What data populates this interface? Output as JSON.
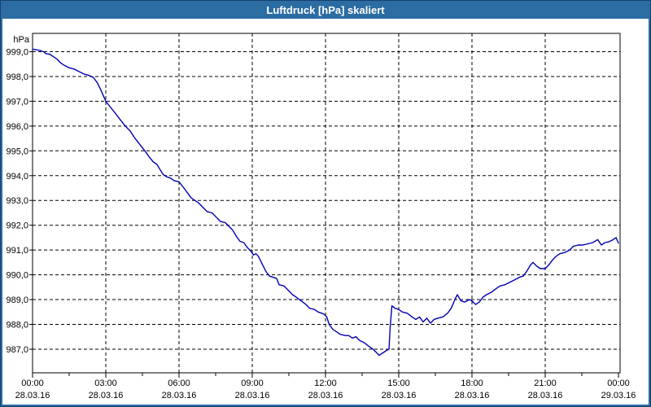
{
  "window": {
    "title": "Luftdruck [hPa] skaliert"
  },
  "colors": {
    "titlebar": "#2b6ca3",
    "title_text": "#ffffff",
    "frame": "#2b6ca3",
    "background": "#ffffff",
    "grid": "#000000",
    "series_line": "#0000b4"
  },
  "chart_data": {
    "type": "line",
    "title": "Luftdruck [hPa] skaliert",
    "ylabel": "hPa",
    "xlabel": "",
    "grid": "dashed",
    "legend": "none",
    "x_axis": {
      "range_hours": [
        0,
        24
      ],
      "grid_hours": [
        3,
        6,
        9,
        12,
        15,
        18,
        21
      ],
      "minor_tick_hours": [
        1.5,
        4.5,
        7.5,
        10.5,
        13.5,
        16.5,
        19.5,
        22.5
      ],
      "ticks": [
        {
          "hour": 0,
          "time": "00:00",
          "date": "28.03.16"
        },
        {
          "hour": 3,
          "time": "03:00",
          "date": "28.03.16"
        },
        {
          "hour": 6,
          "time": "06:00",
          "date": "28.03.16"
        },
        {
          "hour": 9,
          "time": "09:00",
          "date": "28.03.16"
        },
        {
          "hour": 12,
          "time": "12:00",
          "date": "28.03.16"
        },
        {
          "hour": 15,
          "time": "15:00",
          "date": "28.03.16"
        },
        {
          "hour": 18,
          "time": "18:00",
          "date": "28.03.16"
        },
        {
          "hour": 21,
          "time": "21:00",
          "date": "28.03.16"
        },
        {
          "hour": 24,
          "time": "00:00",
          "date": "29.03.16"
        }
      ]
    },
    "y_axis": {
      "unit": "hPa",
      "range_gridlines": [
        987.0,
        999.0
      ],
      "ticks": [
        {
          "value": 999,
          "label": "999,0"
        },
        {
          "value": 998,
          "label": "998,0"
        },
        {
          "value": 997,
          "label": "997,0"
        },
        {
          "value": 996,
          "label": "996,0"
        },
        {
          "value": 995,
          "label": "995,0"
        },
        {
          "value": 994,
          "label": "994,0"
        },
        {
          "value": 993,
          "label": "993,0"
        },
        {
          "value": 992,
          "label": "992,0"
        },
        {
          "value": 991,
          "label": "991,0"
        },
        {
          "value": 990,
          "label": "990,0"
        },
        {
          "value": 989,
          "label": "989,0"
        },
        {
          "value": 988,
          "label": "988,0"
        },
        {
          "value": 987,
          "label": "987,0"
        }
      ]
    },
    "series": [
      {
        "name": "Luftdruck",
        "color": "#0000b4",
        "points": [
          [
            0.0,
            999.1
          ],
          [
            0.15,
            999.08
          ],
          [
            0.3,
            999.05
          ],
          [
            0.45,
            999.0
          ],
          [
            0.55,
            998.92
          ],
          [
            0.7,
            998.9
          ],
          [
            0.85,
            998.8
          ],
          [
            1.0,
            998.7
          ],
          [
            1.15,
            998.55
          ],
          [
            1.3,
            998.45
          ],
          [
            1.5,
            998.35
          ],
          [
            1.7,
            998.3
          ],
          [
            1.9,
            998.2
          ],
          [
            2.1,
            998.1
          ],
          [
            2.3,
            998.05
          ],
          [
            2.5,
            997.95
          ],
          [
            2.65,
            997.75
          ],
          [
            2.8,
            997.45
          ],
          [
            3.0,
            997.0
          ],
          [
            3.2,
            996.75
          ],
          [
            3.4,
            996.5
          ],
          [
            3.6,
            996.25
          ],
          [
            3.8,
            996.0
          ],
          [
            4.0,
            995.8
          ],
          [
            4.2,
            995.5
          ],
          [
            4.4,
            995.25
          ],
          [
            4.6,
            995.0
          ],
          [
            4.78,
            994.75
          ],
          [
            4.95,
            994.55
          ],
          [
            5.1,
            994.45
          ],
          [
            5.25,
            994.2
          ],
          [
            5.35,
            994.05
          ],
          [
            5.5,
            993.95
          ],
          [
            5.65,
            993.9
          ],
          [
            5.8,
            993.8
          ],
          [
            6.0,
            993.75
          ],
          [
            6.2,
            993.5
          ],
          [
            6.35,
            993.3
          ],
          [
            6.5,
            993.1
          ],
          [
            6.65,
            993.0
          ],
          [
            6.8,
            992.9
          ],
          [
            7.0,
            992.7
          ],
          [
            7.15,
            992.55
          ],
          [
            7.35,
            992.5
          ],
          [
            7.55,
            992.3
          ],
          [
            7.7,
            992.15
          ],
          [
            7.9,
            992.1
          ],
          [
            8.05,
            991.95
          ],
          [
            8.2,
            991.8
          ],
          [
            8.35,
            991.55
          ],
          [
            8.5,
            991.35
          ],
          [
            8.65,
            991.3
          ],
          [
            8.8,
            991.1
          ],
          [
            8.95,
            990.95
          ],
          [
            9.05,
            990.8
          ],
          [
            9.15,
            990.85
          ],
          [
            9.25,
            990.75
          ],
          [
            9.4,
            990.45
          ],
          [
            9.55,
            990.15
          ],
          [
            9.7,
            989.95
          ],
          [
            9.85,
            989.9
          ],
          [
            10.0,
            989.85
          ],
          [
            10.1,
            989.6
          ],
          [
            10.3,
            989.55
          ],
          [
            10.5,
            989.35
          ],
          [
            10.65,
            989.2
          ],
          [
            10.8,
            989.1
          ],
          [
            11.0,
            988.95
          ],
          [
            11.2,
            988.8
          ],
          [
            11.35,
            988.65
          ],
          [
            11.55,
            988.6
          ],
          [
            11.7,
            988.5
          ],
          [
            11.85,
            988.45
          ],
          [
            11.95,
            988.4
          ],
          [
            12.05,
            988.3
          ],
          [
            12.15,
            988.0
          ],
          [
            12.3,
            987.8
          ],
          [
            12.45,
            987.7
          ],
          [
            12.6,
            987.6
          ],
          [
            12.8,
            987.55
          ],
          [
            12.95,
            987.55
          ],
          [
            13.1,
            987.45
          ],
          [
            13.25,
            987.5
          ],
          [
            13.4,
            987.35
          ],
          [
            13.6,
            987.25
          ],
          [
            13.8,
            987.1
          ],
          [
            13.95,
            987.0
          ],
          [
            14.1,
            986.85
          ],
          [
            14.2,
            986.75
          ],
          [
            14.35,
            986.85
          ],
          [
            14.5,
            986.95
          ],
          [
            14.6,
            987.0
          ],
          [
            14.65,
            987.9
          ],
          [
            14.72,
            988.75
          ],
          [
            14.85,
            988.65
          ],
          [
            15.0,
            988.6
          ],
          [
            15.15,
            988.5
          ],
          [
            15.35,
            988.45
          ],
          [
            15.55,
            988.3
          ],
          [
            15.7,
            988.2
          ],
          [
            15.85,
            988.3
          ],
          [
            16.0,
            988.1
          ],
          [
            16.15,
            988.25
          ],
          [
            16.3,
            988.05
          ],
          [
            16.45,
            988.2
          ],
          [
            16.6,
            988.25
          ],
          [
            16.8,
            988.3
          ],
          [
            17.0,
            988.45
          ],
          [
            17.15,
            988.65
          ],
          [
            17.3,
            989.0
          ],
          [
            17.4,
            989.2
          ],
          [
            17.55,
            988.95
          ],
          [
            17.7,
            988.9
          ],
          [
            17.9,
            989.0
          ],
          [
            18.0,
            988.95
          ],
          [
            18.15,
            988.8
          ],
          [
            18.3,
            988.9
          ],
          [
            18.45,
            989.1
          ],
          [
            18.6,
            989.2
          ],
          [
            18.8,
            989.3
          ],
          [
            19.0,
            989.45
          ],
          [
            19.15,
            989.55
          ],
          [
            19.35,
            989.6
          ],
          [
            19.55,
            989.7
          ],
          [
            19.75,
            989.8
          ],
          [
            19.95,
            989.9
          ],
          [
            20.1,
            989.95
          ],
          [
            20.25,
            990.15
          ],
          [
            20.4,
            990.4
          ],
          [
            20.5,
            990.5
          ],
          [
            20.65,
            990.35
          ],
          [
            20.8,
            990.25
          ],
          [
            21.0,
            990.25
          ],
          [
            21.15,
            990.4
          ],
          [
            21.3,
            990.6
          ],
          [
            21.45,
            990.75
          ],
          [
            21.6,
            990.85
          ],
          [
            21.8,
            990.9
          ],
          [
            22.0,
            991.0
          ],
          [
            22.15,
            991.15
          ],
          [
            22.35,
            991.2
          ],
          [
            22.55,
            991.2
          ],
          [
            22.75,
            991.25
          ],
          [
            22.95,
            991.3
          ],
          [
            23.15,
            991.42
          ],
          [
            23.3,
            991.2
          ],
          [
            23.45,
            991.3
          ],
          [
            23.6,
            991.33
          ],
          [
            23.75,
            991.4
          ],
          [
            23.9,
            991.5
          ],
          [
            24.0,
            991.28
          ]
        ]
      }
    ]
  }
}
